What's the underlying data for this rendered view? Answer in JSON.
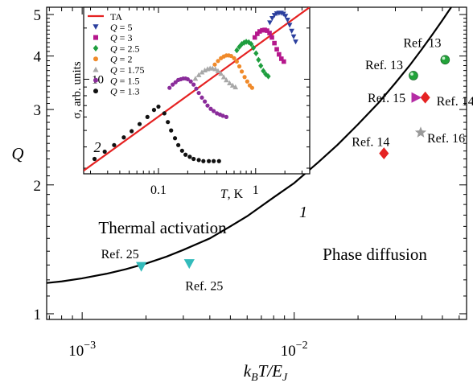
{
  "chart_data": [
    {
      "id": "main",
      "type": "scatter",
      "x_scale": "log",
      "y_scale": "log",
      "xlim": [
        0.00068,
        0.065
      ],
      "ylim": [
        0.97,
        5.2
      ],
      "xlabel": "k_BT/E_J",
      "ylabel": "Q",
      "x_major_ticks": [
        {
          "value": 0.001,
          "label_base": "10",
          "label_exp": "−3"
        },
        {
          "value": 0.01,
          "label_base": "10",
          "label_exp": "−2"
        }
      ],
      "y_ticks": [
        {
          "value": 1,
          "label": "1"
        },
        {
          "value": 2,
          "label": "2"
        },
        {
          "value": 3,
          "label": "3"
        },
        {
          "value": 4,
          "label": "4"
        },
        {
          "value": 5,
          "label": "5"
        }
      ],
      "curve": {
        "label": "1",
        "points": [
          [
            0.00068,
            1.18
          ],
          [
            0.0008,
            1.19
          ],
          [
            0.001,
            1.21
          ],
          [
            0.0013,
            1.24
          ],
          [
            0.0016,
            1.27
          ],
          [
            0.002,
            1.31
          ],
          [
            0.0025,
            1.36
          ],
          [
            0.003,
            1.41
          ],
          [
            0.004,
            1.5
          ],
          [
            0.005,
            1.6
          ],
          [
            0.006,
            1.69
          ],
          [
            0.008,
            1.87
          ],
          [
            0.01,
            2.02
          ],
          [
            0.013,
            2.26
          ],
          [
            0.016,
            2.48
          ],
          [
            0.02,
            2.77
          ],
          [
            0.025,
            3.11
          ],
          [
            0.03,
            3.46
          ],
          [
            0.035,
            3.8
          ],
          [
            0.04,
            4.15
          ],
          [
            0.045,
            4.5
          ],
          [
            0.05,
            4.85
          ],
          [
            0.055,
            5.2
          ]
        ]
      },
      "region_labels": {
        "upper_left": "Thermal activation",
        "lower_right": "Phase diffusion"
      },
      "points": [
        {
          "ref": "Ref. 25",
          "x": 0.0019,
          "y": 1.29,
          "marker": "triangle-down",
          "color": "#33BBBB"
        },
        {
          "ref": "Ref. 25",
          "x": 0.0032,
          "y": 1.31,
          "marker": "triangle-down",
          "color": "#33BBBB"
        },
        {
          "ref": "Ref. 14",
          "x": 0.0265,
          "y": 2.37,
          "marker": "diamond",
          "color": "#E52222"
        },
        {
          "ref": "Ref. 14",
          "x": 0.0415,
          "y": 3.2,
          "marker": "diamond",
          "color": "#E52222"
        },
        {
          "ref": "Ref. 15",
          "x": 0.0375,
          "y": 3.2,
          "marker": "triangle-right",
          "color": "#B52DA5"
        },
        {
          "ref": "Ref. 16",
          "x": 0.0395,
          "y": 2.65,
          "marker": "star",
          "color": "#9A9A9A"
        },
        {
          "ref": "Ref. 13",
          "x": 0.0365,
          "y": 3.6,
          "marker": "sphere",
          "color": "#22A33A"
        },
        {
          "ref": "Ref. 13",
          "x": 0.0515,
          "y": 3.92,
          "marker": "sphere",
          "color": "#22A33A"
        }
      ]
    },
    {
      "id": "inset",
      "type": "scatter",
      "x_scale": "log",
      "y_scale": "log",
      "xlim": [
        0.017,
        3.6
      ],
      "ylim": [
        2.78,
        26.5
      ],
      "xlabel": "T, K",
      "ylabel": "σ, arb. units",
      "x_ticks": [
        {
          "value": 0.1,
          "label": "0.1"
        },
        {
          "value": 1,
          "label": "1"
        }
      ],
      "y_ticks": [
        {
          "value": 10,
          "label": "10"
        }
      ],
      "curve_label": "2",
      "ta_line": {
        "name": "TA",
        "color": "#E52222",
        "points": [
          [
            0.017,
            2.9
          ],
          [
            3.6,
            26.5
          ]
        ]
      },
      "series": [
        {
          "name": "Q = 5",
          "q": "5",
          "marker": "triangle-down",
          "color": "#2B3F9E",
          "points": [
            [
              1.4,
              21.5
            ],
            [
              1.48,
              22.8
            ],
            [
              1.56,
              23.8
            ],
            [
              1.65,
              24.3
            ],
            [
              1.74,
              24.5
            ],
            [
              1.83,
              24.5
            ],
            [
              1.93,
              24.2
            ],
            [
              2.03,
              23.5
            ],
            [
              2.13,
              22.3
            ],
            [
              2.24,
              20.8
            ],
            [
              2.35,
              19.2
            ],
            [
              2.46,
              17.8
            ],
            [
              2.58,
              16.6
            ]
          ]
        },
        {
          "name": "Q = 3",
          "q": "3",
          "marker": "square",
          "color": "#B5178C",
          "points": [
            [
              0.98,
              17.6
            ],
            [
              1.04,
              18.5
            ],
            [
              1.1,
              19.1
            ],
            [
              1.17,
              19.4
            ],
            [
              1.24,
              19.5
            ],
            [
              1.31,
              19.3
            ],
            [
              1.39,
              18.7
            ],
            [
              1.47,
              17.6
            ],
            [
              1.56,
              16.3
            ],
            [
              1.65,
              15.0
            ],
            [
              1.74,
              14.0
            ],
            [
              1.84,
              13.2
            ],
            [
              1.95,
              12.7
            ]
          ]
        },
        {
          "name": "Q = 2.5",
          "q": "2.5",
          "marker": "diamond",
          "color": "#1E9E3E",
          "points": [
            [
              0.64,
              14.8
            ],
            [
              0.68,
              15.5
            ],
            [
              0.72,
              16.1
            ],
            [
              0.76,
              16.4
            ],
            [
              0.8,
              16.6
            ],
            [
              0.85,
              16.5
            ],
            [
              0.9,
              16.1
            ],
            [
              0.95,
              15.3
            ],
            [
              1.01,
              14.2
            ],
            [
              1.07,
              13.0
            ],
            [
              1.13,
              12.0
            ],
            [
              1.2,
              11.2
            ],
            [
              1.27,
              10.7
            ],
            [
              1.35,
              10.4
            ]
          ]
        },
        {
          "name": "Q = 2",
          "q": "2",
          "marker": "circle",
          "color": "#F08A2A",
          "points": [
            [
              0.38,
              12.2
            ],
            [
              0.41,
              12.8
            ],
            [
              0.44,
              13.3
            ],
            [
              0.47,
              13.6
            ],
            [
              0.5,
              13.8
            ],
            [
              0.53,
              13.8
            ],
            [
              0.56,
              13.7
            ],
            [
              0.6,
              13.3
            ],
            [
              0.64,
              12.7
            ],
            [
              0.68,
              11.9
            ],
            [
              0.72,
              11.1
            ],
            [
              0.77,
              10.3
            ],
            [
              0.82,
              9.7
            ],
            [
              0.87,
              9.2
            ],
            [
              0.92,
              8.9
            ]
          ]
        },
        {
          "name": "Q = 1.75",
          "q": "1.75",
          "marker": "triangle-up",
          "color": "#A8A8A8",
          "points": [
            [
              0.24,
              10.1
            ],
            [
              0.26,
              10.6
            ],
            [
              0.28,
              11.0
            ],
            [
              0.3,
              11.3
            ],
            [
              0.32,
              11.5
            ],
            [
              0.34,
              11.6
            ],
            [
              0.36,
              11.6
            ],
            [
              0.385,
              11.5
            ],
            [
              0.41,
              11.2
            ],
            [
              0.44,
              10.8
            ],
            [
              0.47,
              10.3
            ],
            [
              0.5,
              9.9
            ],
            [
              0.54,
              9.5
            ],
            [
              0.58,
              9.2
            ],
            [
              0.62,
              9.0
            ]
          ]
        },
        {
          "name": "Q = 1.5",
          "q": "1.5",
          "marker": "circle",
          "color": "#8A2C9A",
          "points": [
            [
              0.13,
              8.9
            ],
            [
              0.14,
              9.3
            ],
            [
              0.15,
              9.6
            ],
            [
              0.16,
              9.9
            ],
            [
              0.17,
              10.0
            ],
            [
              0.18,
              10.1
            ],
            [
              0.19,
              10.1
            ],
            [
              0.2,
              10.0
            ],
            [
              0.215,
              9.7
            ],
            [
              0.23,
              9.3
            ],
            [
              0.245,
              8.8
            ],
            [
              0.26,
              8.3
            ],
            [
              0.28,
              7.8
            ],
            [
              0.3,
              7.4
            ],
            [
              0.32,
              7.0
            ],
            [
              0.345,
              6.7
            ],
            [
              0.37,
              6.5
            ],
            [
              0.4,
              6.3
            ],
            [
              0.43,
              6.2
            ],
            [
              0.46,
              6.1
            ],
            [
              0.5,
              6.0
            ]
          ]
        },
        {
          "name": "Q = 1.3",
          "q": "1.3",
          "marker": "circle",
          "color": "#111111",
          "points": [
            [
              0.022,
              3.4
            ],
            [
              0.028,
              3.75
            ],
            [
              0.035,
              4.1
            ],
            [
              0.044,
              4.55
            ],
            [
              0.053,
              4.95
            ],
            [
              0.064,
              5.45
            ],
            [
              0.077,
              6.0
            ],
            [
              0.09,
              6.6
            ],
            [
              0.1,
              6.9
            ],
            [
              0.115,
              6.3
            ],
            [
              0.125,
              5.6
            ],
            [
              0.135,
              5.0
            ],
            [
              0.148,
              4.5
            ],
            [
              0.16,
              4.1
            ],
            [
              0.175,
              3.8
            ],
            [
              0.19,
              3.6
            ],
            [
              0.21,
              3.5
            ],
            [
              0.23,
              3.4
            ],
            [
              0.26,
              3.35
            ],
            [
              0.29,
              3.3
            ],
            [
              0.33,
              3.3
            ],
            [
              0.37,
              3.3
            ],
            [
              0.42,
              3.3
            ]
          ]
        }
      ]
    }
  ]
}
